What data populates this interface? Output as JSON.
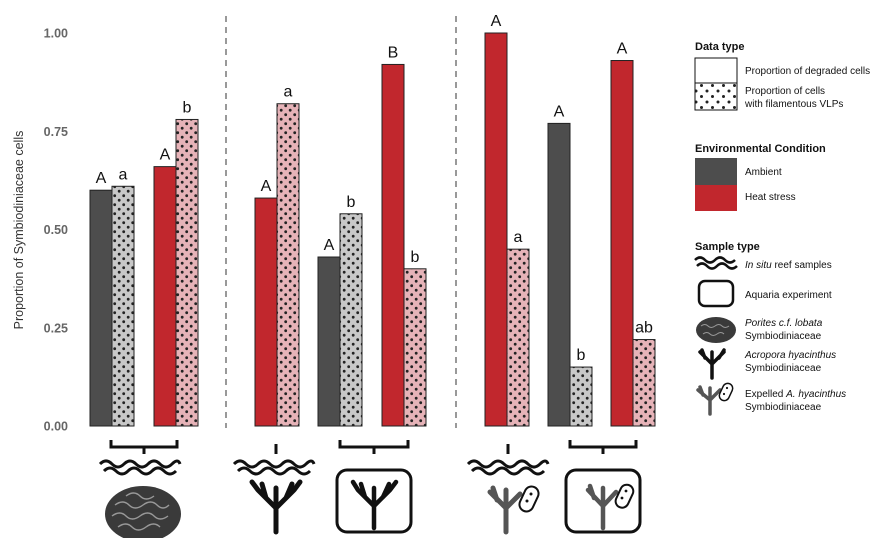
{
  "chart_data": {
    "type": "bar",
    "ylabel": "Proportion of Symbiodiniaceae cells",
    "ylim": [
      0,
      1.0
    ],
    "y_ticks": [
      "0.00",
      "0.25",
      "0.50",
      "0.75",
      "1.00"
    ],
    "panels": [
      {
        "bars": [
          {
            "condition": "Ambient",
            "data_type": "degraded",
            "value": 0.6,
            "label": "A"
          },
          {
            "condition": "Ambient",
            "data_type": "vlp",
            "value": 0.61,
            "label": "a"
          },
          {
            "condition": "Heat stress",
            "data_type": "degraded",
            "value": 0.66,
            "label": "A"
          },
          {
            "condition": "Heat stress",
            "data_type": "vlp",
            "value": 0.78,
            "label": "b"
          }
        ]
      },
      {
        "bars": [
          {
            "condition": "Heat stress",
            "data_type": "degraded",
            "value": 0.58,
            "label": "A"
          },
          {
            "condition": "Heat stress",
            "data_type": "vlp",
            "value": 0.82,
            "label": "a"
          },
          {
            "condition": "Ambient",
            "data_type": "degraded",
            "value": 0.43,
            "label": "A"
          },
          {
            "condition": "Ambient",
            "data_type": "vlp",
            "value": 0.54,
            "label": "b"
          },
          {
            "condition": "Heat stress",
            "data_type": "degraded",
            "value": 0.92,
            "label": "B"
          },
          {
            "condition": "Heat stress",
            "data_type": "vlp",
            "value": 0.4,
            "label": "b"
          }
        ]
      },
      {
        "bars": [
          {
            "condition": "Heat stress",
            "data_type": "degraded",
            "value": 1.0,
            "label": "A"
          },
          {
            "condition": "Heat stress",
            "data_type": "vlp",
            "value": 0.45,
            "label": "a"
          },
          {
            "condition": "Ambient",
            "data_type": "degraded",
            "value": 0.77,
            "label": "A"
          },
          {
            "condition": "Ambient",
            "data_type": "vlp",
            "value": 0.15,
            "label": "b"
          },
          {
            "condition": "Heat stress",
            "data_type": "degraded",
            "value": 0.93,
            "label": "A"
          },
          {
            "condition": "Heat stress",
            "data_type": "vlp",
            "value": 0.22,
            "label": "ab"
          }
        ]
      }
    ]
  },
  "colors": {
    "ambient": "#4d4d4d",
    "heat_stress": "#c1272d",
    "ambient_vlp_fill": "#c8c8c8",
    "heat_vlp_fill": "#e6b3b8",
    "axis_text": "#666666"
  },
  "legend": {
    "data_type": {
      "title": "Data type",
      "degraded": "Proportion of degraded cells",
      "vlp_line1": "Proportion of cells",
      "vlp_line2": "with filamentous VLPs"
    },
    "condition": {
      "title": "Environmental Condition",
      "ambient": "Ambient",
      "heat": "Heat stress"
    },
    "sample": {
      "title": "Sample type",
      "insitu_italic": "In situ",
      "insitu_rest": " reef samples",
      "aquaria": "Aquaria experiment",
      "porites_italic": "Porites c.f. lobata",
      "porites_line2": "Symbiodiniaceae",
      "acropora_italic": "Acropora hyacinthus",
      "acropora_line2": "Symbiodiniaceae",
      "expelled_pre": "Expelled ",
      "expelled_italic": "A. hyacinthus",
      "expelled_line2": "Symbiodiniaceae"
    }
  }
}
